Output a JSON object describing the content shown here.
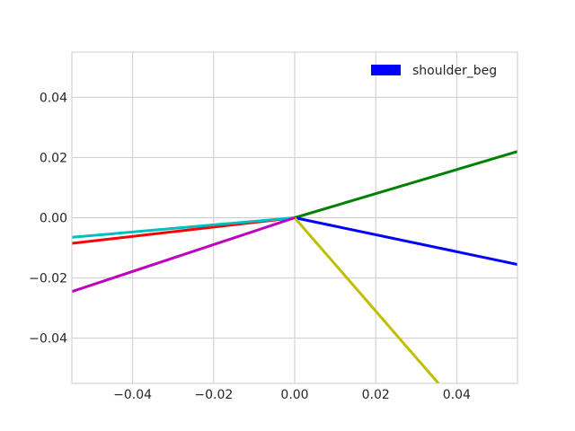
{
  "chart_data": {
    "type": "line",
    "title": "",
    "xlabel": "",
    "ylabel": "",
    "xlim": [
      -0.055,
      0.055
    ],
    "ylim": [
      -0.055,
      0.055
    ],
    "grid": true,
    "legend_position": "top-right",
    "xticks": [
      -0.04,
      -0.02,
      0.0,
      0.02,
      0.04
    ],
    "yticks": [
      -0.04,
      -0.02,
      0.0,
      0.02,
      0.04
    ],
    "xtick_labels": [
      "−0.04",
      "−0.02",
      "0.00",
      "0.02",
      "0.04"
    ],
    "ytick_labels": [
      "−0.04",
      "−0.02",
      "0.00",
      "0.02",
      "0.04"
    ],
    "legend": [
      {
        "label": "shoulder_beg",
        "color": "#0000ff"
      }
    ],
    "series": [
      {
        "color": "#008000",
        "x": [
          0.0,
          0.055
        ],
        "y": [
          0.0,
          0.022
        ]
      },
      {
        "color": "#0000ff",
        "x": [
          0.0,
          0.055
        ],
        "y": [
          0.0,
          -0.0155
        ]
      },
      {
        "color": "#bfbf00",
        "x": [
          0.0,
          0.0355
        ],
        "y": [
          0.0,
          -0.055
        ]
      },
      {
        "color": "#ff0000",
        "x": [
          0.0,
          -0.055
        ],
        "y": [
          0.0,
          -0.0085
        ]
      },
      {
        "color": "#00bfbf",
        "x": [
          0.0,
          -0.055
        ],
        "y": [
          0.0,
          -0.0065
        ]
      },
      {
        "color": "#bf00bf",
        "x": [
          0.0,
          -0.055
        ],
        "y": [
          0.0,
          -0.0245
        ]
      }
    ]
  }
}
